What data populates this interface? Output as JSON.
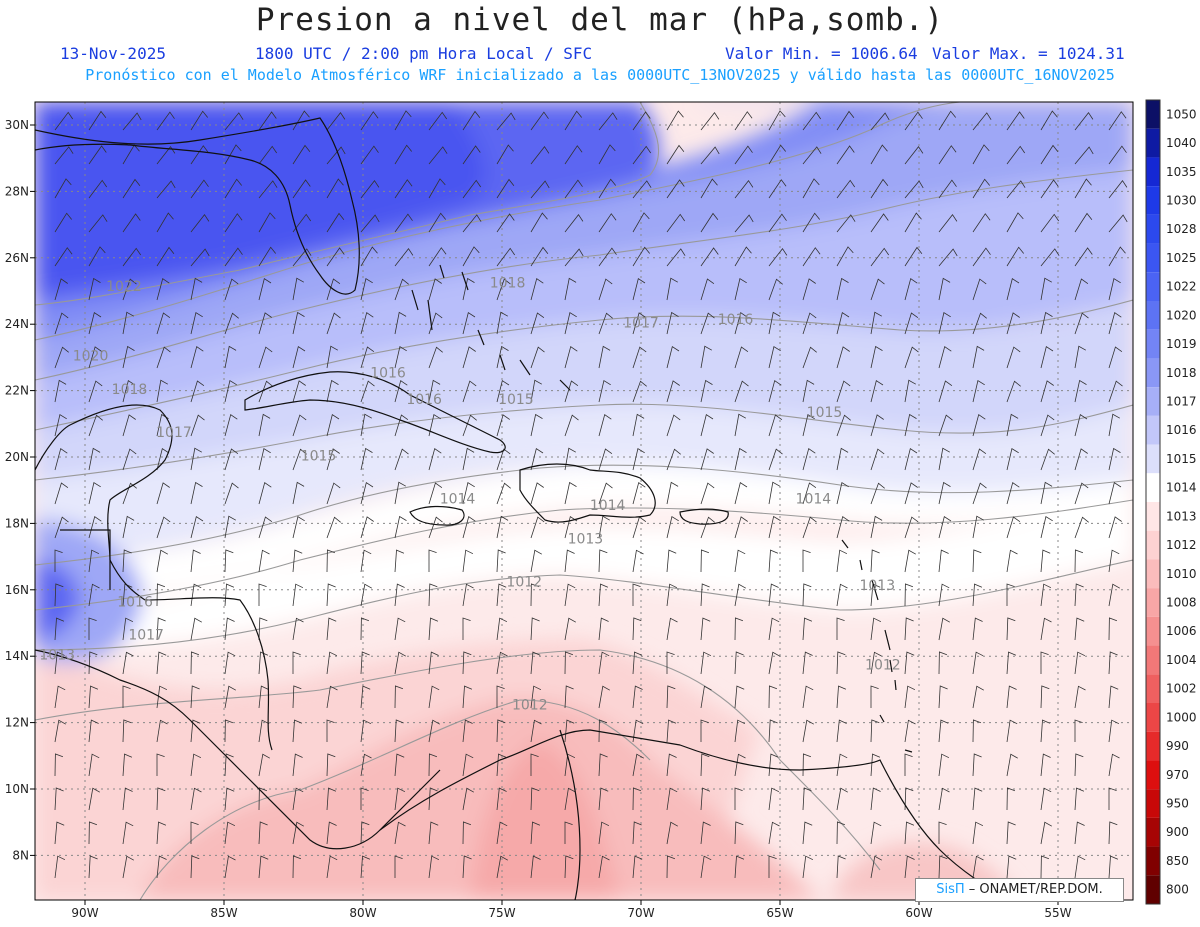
{
  "header": {
    "title": "Presion a nivel del mar (hPa,somb.)",
    "date": "13-Nov-2025",
    "time": "1800 UTC / 2:00 pm Hora Local / SFC",
    "min_value": "Valor Min. = 1006.64",
    "max_value": "Valor Max. = 1024.31",
    "forecast_info": "Pronóstico con el Modelo Atmosférico WRF inicializado a las 0000UTC_13NOV2025 y válido hasta las  0000UTC_16NOV2025"
  },
  "axes": {
    "lat_labels": [
      "30N",
      "28N",
      "26N",
      "24N",
      "22N",
      "20N",
      "18N",
      "16N",
      "14N",
      "12N",
      "10N",
      "8N"
    ],
    "lon_labels": [
      "90W",
      "85W",
      "80W",
      "75W",
      "70W",
      "65W",
      "60W",
      "55W"
    ]
  },
  "colorbar": {
    "levels": [
      "1050",
      "1040",
      "1035",
      "1030",
      "1028",
      "1025",
      "1022",
      "1020",
      "1019",
      "1018",
      "1017",
      "1016",
      "1015",
      "1014",
      "1013",
      "1012",
      "1010",
      "1008",
      "1006",
      "1004",
      "1002",
      "1000",
      "990",
      "970",
      "950",
      "900",
      "850",
      "800"
    ],
    "colors": [
      "#0c1066",
      "#0e1aa3",
      "#1528d4",
      "#1e3ae8",
      "#2c49ee",
      "#3b56f2",
      "#4b63f4",
      "#5d73f4",
      "#7384f5",
      "#8a97f6",
      "#a6aff7",
      "#c2c7f9",
      "#dcdffb",
      "#ffffff",
      "#ffe6e6",
      "#fdd2d2",
      "#fbbcbc",
      "#f8a6a6",
      "#f59090",
      "#f27878",
      "#ef6060",
      "#ec4646",
      "#e62a2a",
      "#dd0f0f",
      "#c80808",
      "#a60404",
      "#800000",
      "#600000"
    ]
  },
  "contour_labels": [
    {
      "text": "1022",
      "lon": -88.6,
      "lat": 25.0
    },
    {
      "text": "1020",
      "lon": -89.8,
      "lat": 22.9
    },
    {
      "text": "1018",
      "lon": -74.8,
      "lat": 25.1
    },
    {
      "text": "1018",
      "lon": -88.4,
      "lat": 21.9
    },
    {
      "text": "1017",
      "lon": -70.0,
      "lat": 23.9
    },
    {
      "text": "1017",
      "lon": -86.8,
      "lat": 20.6
    },
    {
      "text": "1017",
      "lon": -87.8,
      "lat": 14.5
    },
    {
      "text": "1016",
      "lon": -66.6,
      "lat": 24.0
    },
    {
      "text": "1016",
      "lon": -79.1,
      "lat": 22.4
    },
    {
      "text": "1016",
      "lon": -77.8,
      "lat": 21.6
    },
    {
      "text": "1016",
      "lon": -88.2,
      "lat": 15.5
    },
    {
      "text": "1015",
      "lon": -74.5,
      "lat": 21.6
    },
    {
      "text": "1015",
      "lon": -63.4,
      "lat": 21.2
    },
    {
      "text": "1015",
      "lon": -81.6,
      "lat": 19.9
    },
    {
      "text": "1014",
      "lon": -76.6,
      "lat": 18.6
    },
    {
      "text": "1014",
      "lon": -71.2,
      "lat": 18.4
    },
    {
      "text": "1014",
      "lon": -63.8,
      "lat": 18.6
    },
    {
      "text": "1013",
      "lon": -72.0,
      "lat": 17.4
    },
    {
      "text": "1013",
      "lon": -91.0,
      "lat": 13.9
    },
    {
      "text": "1013",
      "lon": -61.5,
      "lat": 16.0
    },
    {
      "text": "1012",
      "lon": -74.2,
      "lat": 16.1
    },
    {
      "text": "1012",
      "lon": -61.3,
      "lat": 13.6
    },
    {
      "text": "1012",
      "lon": -74.0,
      "lat": 12.4
    }
  ],
  "credit": {
    "brand": "SisΠ",
    "org": "– ONAMET/REP.DOM."
  }
}
